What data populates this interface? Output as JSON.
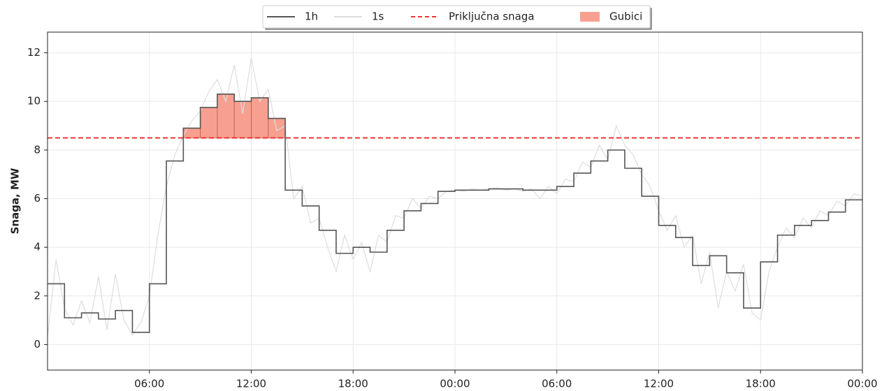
{
  "chart_data": {
    "type": "line",
    "y_label": "Snaga, MW",
    "xlim": [
      0,
      48
    ],
    "xticks": [
      {
        "value": 6,
        "label": "06:00"
      },
      {
        "value": 12,
        "label": "12:00"
      },
      {
        "value": 18,
        "label": "18:00"
      },
      {
        "value": 24,
        "label": "00:00"
      },
      {
        "value": 30,
        "label": "06:00"
      },
      {
        "value": 36,
        "label": "12:00"
      },
      {
        "value": 42,
        "label": "18:00"
      },
      {
        "value": 48,
        "label": "00:00"
      }
    ],
    "ylim": [
      -1.05,
      12.85
    ],
    "yticks": [
      0,
      2,
      4,
      6,
      8,
      10,
      12
    ],
    "grid": true,
    "legend": "upper center",
    "series": [
      {
        "name": "1h",
        "color": "#555555",
        "step": true,
        "x": [
          0,
          1,
          2,
          3,
          4,
          5,
          6,
          7,
          8,
          9,
          10,
          11,
          12,
          13,
          14,
          15,
          16,
          17,
          18,
          19,
          20,
          21,
          22,
          23,
          24,
          25,
          26,
          27,
          28,
          29,
          30,
          31,
          32,
          33,
          34,
          35,
          36,
          37,
          38,
          39,
          40,
          41,
          42,
          43,
          44,
          45,
          46,
          47
        ],
        "values": [
          2.5,
          1.1,
          1.3,
          1.05,
          1.4,
          0.5,
          2.5,
          7.55,
          8.9,
          9.75,
          10.3,
          10.0,
          10.15,
          9.3,
          6.35,
          5.7,
          4.7,
          3.75,
          4.0,
          3.8,
          4.7,
          5.5,
          5.8,
          6.3,
          6.35,
          6.35,
          6.4,
          6.4,
          6.35,
          6.35,
          6.5,
          7.05,
          7.55,
          8.0,
          7.25,
          6.1,
          4.9,
          4.4,
          3.25,
          3.65,
          2.95,
          1.5,
          3.4,
          4.5,
          4.9,
          5.1,
          5.45,
          5.95
        ]
      },
      {
        "name": "1s",
        "color": "#dddddd",
        "x": [
          0,
          0.5,
          1,
          1.5,
          2,
          2.5,
          3,
          3.5,
          4,
          4.5,
          5,
          5.5,
          6,
          6.5,
          7,
          7.5,
          8,
          8.5,
          9,
          9.5,
          10,
          10.5,
          11,
          11.5,
          12,
          12.5,
          13,
          13.5,
          14,
          14.5,
          15,
          15.5,
          16,
          16.5,
          17,
          17.5,
          18,
          18.5,
          19,
          19.5,
          20,
          20.5,
          21,
          21.5,
          22,
          22.5,
          23,
          23.5,
          24,
          24.5,
          25,
          25.5,
          26,
          26.5,
          27,
          27.5,
          28,
          28.5,
          29,
          29.5,
          30,
          30.5,
          31,
          31.5,
          32,
          32.5,
          33,
          33.5,
          34,
          34.5,
          35,
          35.5,
          36,
          36.5,
          37,
          37.5,
          38,
          38.5,
          39,
          39.5,
          40,
          40.5,
          41,
          41.5,
          42,
          42.5,
          43,
          43.5,
          44,
          44.5,
          45,
          45.5,
          46,
          46.5,
          47,
          47.5,
          48
        ],
        "values": [
          0.3,
          3.5,
          1.5,
          0.8,
          1.8,
          0.9,
          2.8,
          0.6,
          2.9,
          1.0,
          0.4,
          0.9,
          2.0,
          4.5,
          6.5,
          7.8,
          8.6,
          9.2,
          9.6,
          10.4,
          10.9,
          10.0,
          11.5,
          9.5,
          11.8,
          10.0,
          10.5,
          8.8,
          9.0,
          6.0,
          6.5,
          5.0,
          5.2,
          4.0,
          3.0,
          4.5,
          3.5,
          4.2,
          3.0,
          4.5,
          4.2,
          5.3,
          5.2,
          6.0,
          5.6,
          6.1,
          6.0,
          6.3,
          6.35,
          6.3,
          6.4,
          6.35,
          6.4,
          6.45,
          6.35,
          6.4,
          6.3,
          6.4,
          6.0,
          6.5,
          6.2,
          6.8,
          6.7,
          7.5,
          7.3,
          8.2,
          7.6,
          9.0,
          8.2,
          7.8,
          7.0,
          6.5,
          5.5,
          4.7,
          5.3,
          4.0,
          4.5,
          2.5,
          3.8,
          1.5,
          3.0,
          2.2,
          3.3,
          1.3,
          1.0,
          3.0,
          4.0,
          4.8,
          4.4,
          5.2,
          4.8,
          5.5,
          5.3,
          5.9,
          5.7,
          6.2,
          6.1
        ]
      }
    ],
    "limit": {
      "name": "Priključna snaga",
      "value": 8.5,
      "color": "#ee3333"
    },
    "fill": {
      "name": "Gubici",
      "color": "#f8a090"
    }
  }
}
